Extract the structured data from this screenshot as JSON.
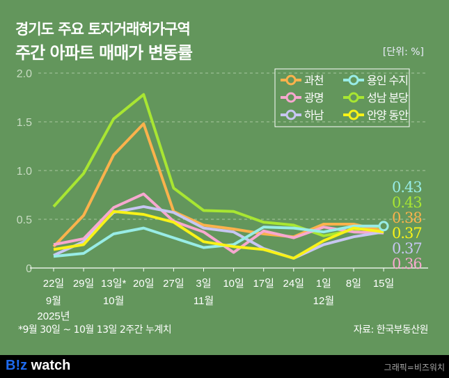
{
  "header": {
    "title_line1": "경기도 주요 토지거래허가구역",
    "title_line2": "주간 아파트 매매가 변동률",
    "unit": "[단위: %]"
  },
  "footer": {
    "note": "*9월 30일 ~ 10월 13일 2주간 누계치",
    "source": "자료: 한국부동산원",
    "logo_b": "B!z",
    "logo_rest": " watch",
    "credit": "그래픽=비즈워치"
  },
  "chart_data": {
    "type": "line",
    "title": "경기도 주요 토지거래허가구역 주간 아파트 매매가 변동률",
    "ylabel": "%",
    "ylim": [
      0,
      2.0
    ],
    "yticks": [
      "0",
      "0.5",
      "1.0",
      "1.5",
      "2.0"
    ],
    "ytick_values": [
      0,
      0.5,
      1.0,
      1.5,
      2.0
    ],
    "grid": true,
    "legend_position": "top-right",
    "categories": [
      "22일",
      "29일",
      "13일*",
      "20일",
      "27일",
      "3일",
      "10일",
      "17일",
      "24일",
      "1일",
      "8일",
      "15일"
    ],
    "month_labels": [
      {
        "index": 0,
        "text": "9월"
      },
      {
        "index": 2,
        "text": "10월"
      },
      {
        "index": 5,
        "text": "11월"
      },
      {
        "index": 9,
        "text": "12월"
      }
    ],
    "year_label": "2025년",
    "series": [
      {
        "name": "과천",
        "color": "#fbb24c",
        "values": [
          0.22,
          0.54,
          1.16,
          1.48,
          0.58,
          0.44,
          0.4,
          0.35,
          0.32,
          0.45,
          0.45,
          0.38
        ],
        "end_label": "0.38"
      },
      {
        "name": "광명",
        "color": "#f7a8cf",
        "values": [
          0.24,
          0.3,
          0.62,
          0.76,
          0.48,
          0.37,
          0.16,
          0.38,
          0.31,
          0.42,
          0.37,
          0.36
        ],
        "end_label": "0.36"
      },
      {
        "name": "하남",
        "color": "#c7c6f2",
        "values": [
          0.13,
          0.27,
          0.57,
          0.63,
          0.57,
          0.41,
          0.37,
          0.2,
          0.1,
          0.24,
          0.32,
          0.37
        ],
        "end_label": "0.37"
      },
      {
        "name": "용인 수지",
        "color": "#98ece6",
        "values": [
          0.12,
          0.15,
          0.35,
          0.41,
          0.31,
          0.21,
          0.24,
          0.42,
          0.41,
          0.37,
          0.43,
          0.43
        ],
        "end_label": "0.43"
      },
      {
        "name": "성남 분당",
        "color": "#a8e632",
        "values": [
          0.63,
          0.97,
          1.53,
          1.78,
          0.82,
          0.59,
          0.58,
          0.47,
          0.44,
          0.33,
          0.39,
          0.43
        ],
        "end_label": "0.43"
      },
      {
        "name": "안양 동안",
        "color": "#f8f218",
        "values": [
          0.19,
          0.24,
          0.58,
          0.55,
          0.47,
          0.27,
          0.22,
          0.19,
          0.1,
          0.28,
          0.41,
          0.37
        ],
        "end_label": "0.37"
      }
    ],
    "end_label_order": [
      3,
      4,
      0,
      5,
      2,
      1
    ]
  }
}
